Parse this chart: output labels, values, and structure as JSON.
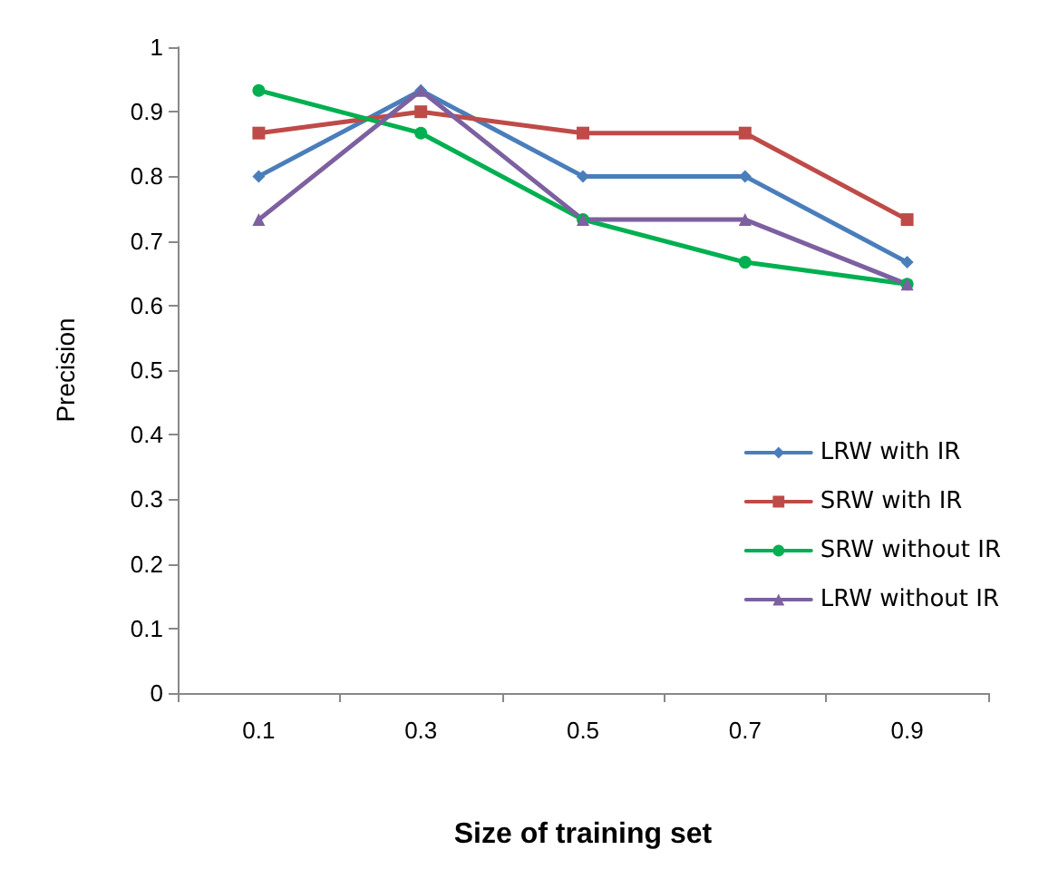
{
  "chart_data": {
    "type": "line",
    "xlabel": "Size of training set",
    "ylabel": "Precision",
    "categories": [
      "0.1",
      "0.3",
      "0.5",
      "0.7",
      "0.9"
    ],
    "ylim": [
      0,
      1
    ],
    "yticks": [
      0,
      0.1,
      0.2,
      0.3,
      0.4,
      0.5,
      0.6,
      0.7,
      0.8,
      0.9,
      1
    ],
    "grid": false,
    "legend": "bottom right",
    "line_style": "solid",
    "series": [
      {
        "name": "LRW with IR",
        "color": "#4a7ebb",
        "marker": "diamond",
        "values": [
          0.8,
          0.933,
          0.8,
          0.8,
          0.667
        ]
      },
      {
        "name": "SRW with IR",
        "color": "#be4b48",
        "marker": "square",
        "values": [
          0.867,
          0.9,
          0.867,
          0.867,
          0.733
        ]
      },
      {
        "name": "SRW without IR",
        "color": "#00b050",
        "marker": "circle",
        "values": [
          0.933,
          0.867,
          0.733,
          0.667,
          0.633
        ]
      },
      {
        "name": "LRW without IR",
        "color": "#7d60a0",
        "marker": "triangle",
        "values": [
          0.733,
          0.933,
          0.733,
          0.733,
          0.633
        ]
      }
    ]
  }
}
